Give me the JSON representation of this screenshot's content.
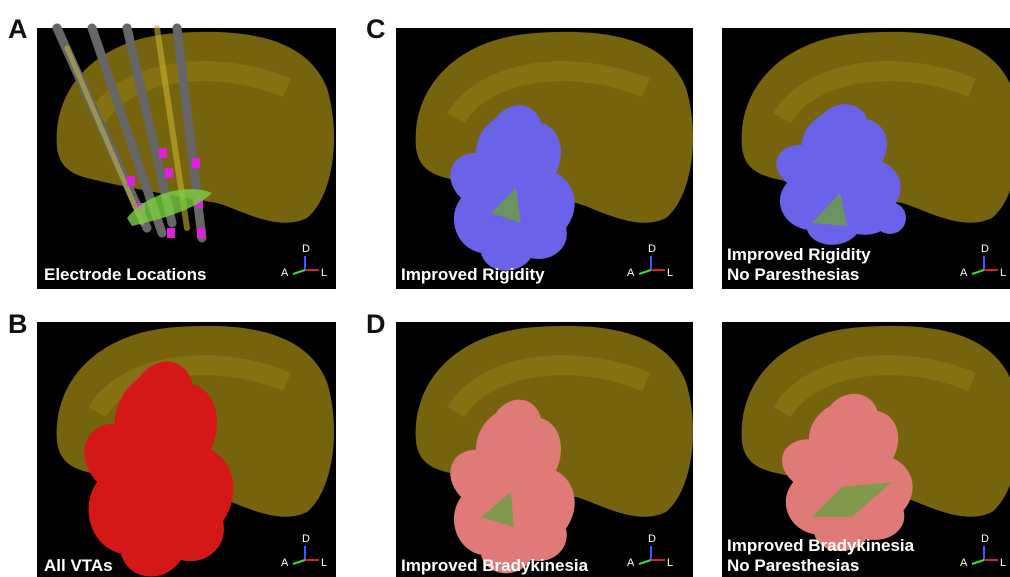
{
  "panels": [
    {
      "letter": "A",
      "caption": [
        "Electrode Locations"
      ],
      "axes": {
        "up": "D",
        "left": "A",
        "right": "L"
      }
    },
    {
      "letter": "C",
      "caption": [
        "Improved Rigidity"
      ],
      "axes": {
        "up": "D",
        "left": "A",
        "right": "L"
      }
    },
    {
      "caption": [
        "Improved Rigidity",
        "No Paresthesias"
      ],
      "axes": {
        "up": "D",
        "left": "A",
        "right": "L"
      }
    },
    {
      "letter": "B",
      "caption": [
        "All VTAs"
      ],
      "axes": {
        "up": "D",
        "left": "A",
        "right": "L"
      }
    },
    {
      "letter": "D",
      "caption": [
        "Improved Bradykinesia"
      ],
      "axes": {
        "up": "D",
        "left": "A",
        "right": "L"
      }
    },
    {
      "caption": [
        "Improved Bradykinesia",
        "No Paresthesias"
      ],
      "axes": {
        "up": "D",
        "left": "A",
        "right": "L"
      }
    }
  ]
}
